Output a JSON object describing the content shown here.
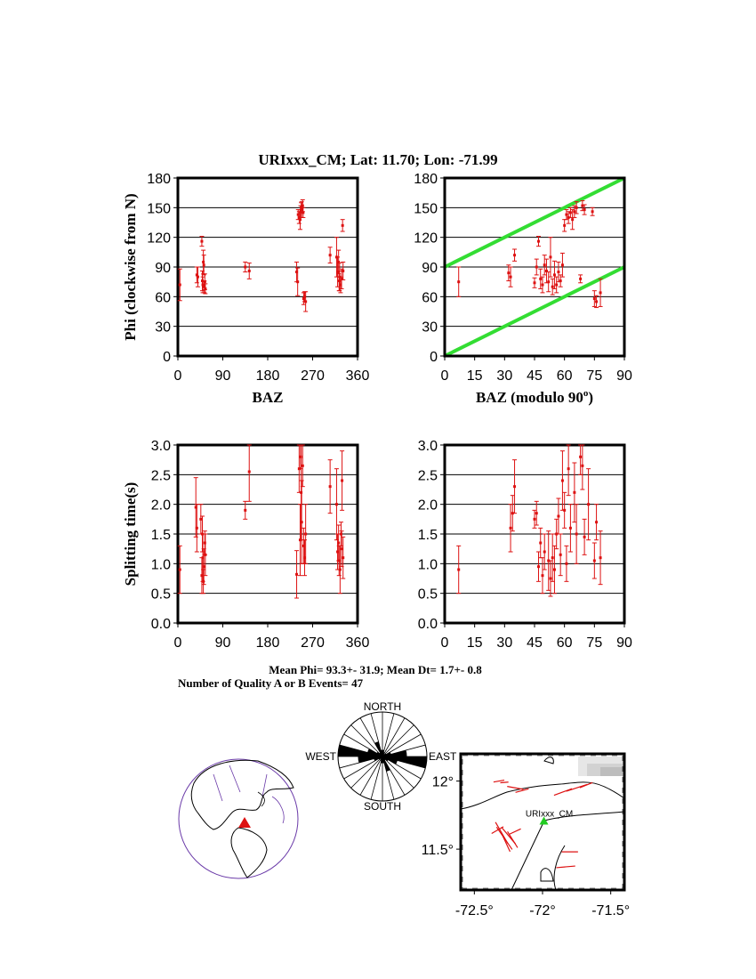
{
  "header": {
    "station": "URIxxx_CM",
    "lat_label": "Lat:",
    "lat": "11.70",
    "lon_label": "Lon:",
    "lon": "-71.99"
  },
  "summary": {
    "line1": "Mean Phi= 93.3+- 31.9; Mean Dt=  1.7+-  0.8",
    "line2": "Number of Quality A or B Events= 47"
  },
  "colors": {
    "data": "#dd1111",
    "ref_line": "#33dd33",
    "grid": "#000000"
  },
  "chart_data": [
    {
      "type": "scatter",
      "title": "",
      "xlabel": "BAZ",
      "ylabel": "Phi (clockwise from N)",
      "xlim": [
        0,
        360
      ],
      "ylim": [
        0,
        180
      ],
      "xticks": [
        "0",
        "90",
        "180",
        "270",
        "360"
      ],
      "yticks": [
        "0",
        "30",
        "60",
        "90",
        "120",
        "150",
        "180"
      ],
      "grid": "horizontal",
      "points": [
        {
          "x": 4,
          "y": 72,
          "err": 16
        },
        {
          "x": 38,
          "y": 82,
          "err": 8
        },
        {
          "x": 40,
          "y": 80,
          "err": 10
        },
        {
          "x": 48,
          "y": 116,
          "err": 5
        },
        {
          "x": 49,
          "y": 76,
          "err": 10
        },
        {
          "x": 50,
          "y": 72,
          "err": 8
        },
        {
          "x": 51,
          "y": 95,
          "err": 12
        },
        {
          "x": 52,
          "y": 92,
          "err": 10
        },
        {
          "x": 53,
          "y": 70,
          "err": 6
        },
        {
          "x": 54,
          "y": 75,
          "err": 8
        },
        {
          "x": 55,
          "y": 68,
          "err": 5
        },
        {
          "x": 135,
          "y": 90,
          "err": 5
        },
        {
          "x": 143,
          "y": 86,
          "err": 8
        },
        {
          "x": 238,
          "y": 85,
          "err": 10
        },
        {
          "x": 240,
          "y": 75,
          "err": 14
        },
        {
          "x": 241,
          "y": 143,
          "err": 5
        },
        {
          "x": 243,
          "y": 140,
          "err": 6
        },
        {
          "x": 245,
          "y": 138,
          "err": 10
        },
        {
          "x": 246,
          "y": 146,
          "err": 6
        },
        {
          "x": 247,
          "y": 150,
          "err": 5
        },
        {
          "x": 248,
          "y": 148,
          "err": 8
        },
        {
          "x": 250,
          "y": 152,
          "err": 6
        },
        {
          "x": 251,
          "y": 145,
          "err": 5
        },
        {
          "x": 252,
          "y": 58,
          "err": 6
        },
        {
          "x": 254,
          "y": 60,
          "err": 5
        },
        {
          "x": 256,
          "y": 55,
          "err": 10
        },
        {
          "x": 305,
          "y": 102,
          "err": 8
        },
        {
          "x": 318,
          "y": 100,
          "err": 20
        },
        {
          "x": 320,
          "y": 85,
          "err": 15
        },
        {
          "x": 322,
          "y": 95,
          "err": 12
        },
        {
          "x": 323,
          "y": 76,
          "err": 10
        },
        {
          "x": 324,
          "y": 80,
          "err": 14
        },
        {
          "x": 326,
          "y": 72,
          "err": 8
        },
        {
          "x": 328,
          "y": 78,
          "err": 10
        },
        {
          "x": 330,
          "y": 132,
          "err": 6
        },
        {
          "x": 331,
          "y": 86,
          "err": 9
        }
      ]
    },
    {
      "type": "scatter",
      "title": "",
      "xlabel": "BAZ (modulo 90",
      "xlabel_sup": "o",
      "xlabel_end": ")",
      "ylabel": "",
      "xlim": [
        0,
        90
      ],
      "ylim": [
        0,
        180
      ],
      "xticks": [
        "0",
        "15",
        "30",
        "45",
        "60",
        "75",
        "90"
      ],
      "yticks": [
        "0",
        "30",
        "60",
        "90",
        "120",
        "150",
        "180"
      ],
      "grid": "horizontal",
      "reference_lines": [
        {
          "x": [
            0,
            90
          ],
          "y": [
            0,
            90
          ]
        },
        {
          "x": [
            0,
            90
          ],
          "y": [
            90,
            180
          ]
        }
      ],
      "points": [
        {
          "x": 7,
          "y": 75,
          "err": 15
        },
        {
          "x": 32,
          "y": 84,
          "err": 8
        },
        {
          "x": 33,
          "y": 80,
          "err": 10
        },
        {
          "x": 35,
          "y": 102,
          "err": 6
        },
        {
          "x": 45,
          "y": 74,
          "err": 5
        },
        {
          "x": 46,
          "y": 90,
          "err": 8
        },
        {
          "x": 47,
          "y": 116,
          "err": 5
        },
        {
          "x": 48,
          "y": 78,
          "err": 10
        },
        {
          "x": 49,
          "y": 72,
          "err": 8
        },
        {
          "x": 50,
          "y": 92,
          "err": 10
        },
        {
          "x": 51,
          "y": 86,
          "err": 12
        },
        {
          "x": 52,
          "y": 75,
          "err": 10
        },
        {
          "x": 53,
          "y": 100,
          "err": 20
        },
        {
          "x": 54,
          "y": 70,
          "err": 8
        },
        {
          "x": 55,
          "y": 82,
          "err": 14
        },
        {
          "x": 56,
          "y": 72,
          "err": 8
        },
        {
          "x": 57,
          "y": 85,
          "err": 10
        },
        {
          "x": 58,
          "y": 76,
          "err": 6
        },
        {
          "x": 59,
          "y": 92,
          "err": 12
        },
        {
          "x": 60,
          "y": 132,
          "err": 6
        },
        {
          "x": 61,
          "y": 143,
          "err": 5
        },
        {
          "x": 62,
          "y": 140,
          "err": 6
        },
        {
          "x": 63,
          "y": 145,
          "err": 5
        },
        {
          "x": 64,
          "y": 138,
          "err": 10
        },
        {
          "x": 65,
          "y": 146,
          "err": 6
        },
        {
          "x": 66,
          "y": 150,
          "err": 6
        },
        {
          "x": 68,
          "y": 78,
          "err": 4
        },
        {
          "x": 69,
          "y": 152,
          "err": 5
        },
        {
          "x": 70,
          "y": 148,
          "err": 5
        },
        {
          "x": 74,
          "y": 146,
          "err": 4
        },
        {
          "x": 75,
          "y": 58,
          "err": 8
        },
        {
          "x": 76,
          "y": 55,
          "err": 6
        },
        {
          "x": 78,
          "y": 64,
          "err": 14
        }
      ]
    },
    {
      "type": "scatter",
      "title": "",
      "xlabel": "",
      "ylabel": "Splitting time(s)",
      "xlim": [
        0,
        360
      ],
      "ylim": [
        0,
        3
      ],
      "xticks": [
        "0",
        "90",
        "180",
        "270",
        "360"
      ],
      "yticks": [
        "0.0",
        "0.5",
        "1.0",
        "1.5",
        "2.0",
        "2.5",
        "3.0"
      ],
      "grid": "horizontal",
      "points": [
        {
          "x": 4,
          "y": 0.9,
          "err": 0.4
        },
        {
          "x": 36,
          "y": 1.95,
          "err": 0.5
        },
        {
          "x": 38,
          "y": 1.6,
          "err": 0.4
        },
        {
          "x": 46,
          "y": 1.75,
          "err": 0.25
        },
        {
          "x": 48,
          "y": 0.8,
          "err": 0.3
        },
        {
          "x": 49,
          "y": 1.5,
          "err": 0.3
        },
        {
          "x": 50,
          "y": 1.1,
          "err": 0.4
        },
        {
          "x": 51,
          "y": 0.7,
          "err": 0.2
        },
        {
          "x": 52,
          "y": 0.95,
          "err": 0.3
        },
        {
          "x": 54,
          "y": 1.35,
          "err": 0.2
        },
        {
          "x": 55,
          "y": 1.15,
          "err": 0.35
        },
        {
          "x": 135,
          "y": 1.9,
          "err": 0.15
        },
        {
          "x": 143,
          "y": 2.55,
          "err": 0.5
        },
        {
          "x": 238,
          "y": 0.82,
          "err": 0.4
        },
        {
          "x": 243,
          "y": 2.6,
          "err": 0.4
        },
        {
          "x": 245,
          "y": 1.4,
          "err": 0.6
        },
        {
          "x": 246,
          "y": 2.8,
          "err": 0.2
        },
        {
          "x": 247,
          "y": 2.2,
          "err": 0.8
        },
        {
          "x": 248,
          "y": 1.7,
          "err": 0.7
        },
        {
          "x": 250,
          "y": 2.65,
          "err": 0.35
        },
        {
          "x": 252,
          "y": 1.3,
          "err": 0.3
        },
        {
          "x": 254,
          "y": 1.1,
          "err": 0.3
        },
        {
          "x": 256,
          "y": 1.5,
          "err": 0.5
        },
        {
          "x": 305,
          "y": 2.3,
          "err": 0.45
        },
        {
          "x": 318,
          "y": 2.0,
          "err": 0.6
        },
        {
          "x": 320,
          "y": 1.2,
          "err": 0.3
        },
        {
          "x": 322,
          "y": 1.35,
          "err": 0.3
        },
        {
          "x": 323,
          "y": 1.05,
          "err": 0.25
        },
        {
          "x": 325,
          "y": 0.9,
          "err": 0.4
        },
        {
          "x": 327,
          "y": 1.5,
          "err": 0.2
        },
        {
          "x": 328,
          "y": 1.25,
          "err": 0.3
        },
        {
          "x": 329,
          "y": 2.4,
          "err": 0.5
        },
        {
          "x": 331,
          "y": 1.1,
          "err": 0.35
        }
      ]
    },
    {
      "type": "scatter",
      "title": "",
      "xlabel": "",
      "ylabel": "",
      "xlim": [
        0,
        90
      ],
      "ylim": [
        0,
        3
      ],
      "xticks": [
        "0",
        "15",
        "30",
        "45",
        "60",
        "75",
        "90"
      ],
      "yticks": [
        "0.0",
        "0.5",
        "1.0",
        "1.5",
        "2.0",
        "2.5",
        "3.0"
      ],
      "grid": "horizontal",
      "points": [
        {
          "x": 7,
          "y": 0.9,
          "err": 0.4
        },
        {
          "x": 33,
          "y": 1.6,
          "err": 0.4
        },
        {
          "x": 34,
          "y": 1.85,
          "err": 0.3
        },
        {
          "x": 35,
          "y": 2.3,
          "err": 0.45
        },
        {
          "x": 45,
          "y": 1.75,
          "err": 0.15
        },
        {
          "x": 46,
          "y": 1.85,
          "err": 0.2
        },
        {
          "x": 47,
          "y": 0.95,
          "err": 0.25
        },
        {
          "x": 48,
          "y": 1.35,
          "err": 0.25
        },
        {
          "x": 49,
          "y": 0.8,
          "err": 0.3
        },
        {
          "x": 50,
          "y": 1.2,
          "err": 0.3
        },
        {
          "x": 52,
          "y": 1.05,
          "err": 0.5
        },
        {
          "x": 53,
          "y": 0.75,
          "err": 0.3
        },
        {
          "x": 54,
          "y": 1.1,
          "err": 0.4
        },
        {
          "x": 55,
          "y": 0.9,
          "err": 0.4
        },
        {
          "x": 56,
          "y": 1.5,
          "err": 0.25
        },
        {
          "x": 57,
          "y": 1.8,
          "err": 0.3
        },
        {
          "x": 58,
          "y": 1.15,
          "err": 0.35
        },
        {
          "x": 59,
          "y": 2.4,
          "err": 0.5
        },
        {
          "x": 60,
          "y": 1.9,
          "err": 0.3
        },
        {
          "x": 61,
          "y": 1.0,
          "err": 0.3
        },
        {
          "x": 62,
          "y": 2.6,
          "err": 0.45
        },
        {
          "x": 63,
          "y": 1.6,
          "err": 0.4
        },
        {
          "x": 65,
          "y": 2.2,
          "err": 0.5
        },
        {
          "x": 66,
          "y": 1.5,
          "err": 0.5
        },
        {
          "x": 68,
          "y": 2.8,
          "err": 0.3
        },
        {
          "x": 69,
          "y": 2.65,
          "err": 0.4
        },
        {
          "x": 70,
          "y": 1.45,
          "err": 0.3
        },
        {
          "x": 72,
          "y": 2.0,
          "err": 0.6
        },
        {
          "x": 75,
          "y": 1.05,
          "err": 0.3
        },
        {
          "x": 76,
          "y": 1.7,
          "err": 0.3
        },
        {
          "x": 78,
          "y": 1.1,
          "err": 0.45
        }
      ]
    }
  ],
  "rose": {
    "north": "NORTH",
    "south": "SOUTH",
    "west": "WEST",
    "east": "EAST",
    "bin_width_deg": 15,
    "bins": [
      {
        "az": 0,
        "len": 0.15
      },
      {
        "az": 15,
        "len": 0.1
      },
      {
        "az": 30,
        "len": 0.05
      },
      {
        "az": 45,
        "len": 0.1
      },
      {
        "az": 60,
        "len": 0.2
      },
      {
        "az": 75,
        "len": 0.55
      },
      {
        "az": 90,
        "len": 1.0
      },
      {
        "az": 105,
        "len": 0.35
      },
      {
        "az": 120,
        "len": 0.15
      },
      {
        "az": 135,
        "len": 0.1
      },
      {
        "az": 150,
        "len": 0.35
      },
      {
        "az": 165,
        "len": 0.15
      }
    ]
  },
  "map": {
    "station_label": "URIxxx_CM",
    "lat_ticks": [
      "12°",
      "11.5°"
    ],
    "lon_ticks": [
      "-72.5°",
      "-72°",
      "-71.5°"
    ],
    "lat_range": [
      11.2,
      12.2
    ],
    "lon_range": [
      -72.6,
      -71.4
    ],
    "station": {
      "lon": -71.99,
      "lat": 11.7
    },
    "splits": [
      {
        "lon": -72.32,
        "lat": 12.0,
        "az": 80,
        "len": 0.08
      },
      {
        "lon": -72.28,
        "lat": 11.99,
        "az": 85,
        "len": 0.06
      },
      {
        "lon": -72.2,
        "lat": 11.95,
        "az": 100,
        "len": 0.12
      },
      {
        "lon": -72.15,
        "lat": 11.93,
        "az": 75,
        "len": 0.1
      },
      {
        "lon": -71.85,
        "lat": 11.92,
        "az": 70,
        "len": 0.14
      },
      {
        "lon": -71.75,
        "lat": 11.95,
        "az": 72,
        "len": 0.16
      },
      {
        "lon": -71.68,
        "lat": 11.97,
        "az": 68,
        "len": 0.1
      },
      {
        "lon": -72.3,
        "lat": 11.62,
        "az": 150,
        "len": 0.18
      },
      {
        "lon": -72.28,
        "lat": 11.58,
        "az": 145,
        "len": 0.2
      },
      {
        "lon": -72.25,
        "lat": 11.6,
        "az": 140,
        "len": 0.16
      },
      {
        "lon": -72.27,
        "lat": 11.55,
        "az": 155,
        "len": 0.15
      },
      {
        "lon": -72.22,
        "lat": 11.57,
        "az": 148,
        "len": 0.14
      },
      {
        "lon": -72.33,
        "lat": 11.64,
        "az": 60,
        "len": 0.1
      },
      {
        "lon": -72.2,
        "lat": 11.63,
        "az": 65,
        "len": 0.09
      },
      {
        "lon": -71.8,
        "lat": 11.48,
        "az": 90,
        "len": 0.12
      },
      {
        "lon": -71.83,
        "lat": 11.37,
        "az": 85,
        "len": 0.14
      }
    ]
  }
}
